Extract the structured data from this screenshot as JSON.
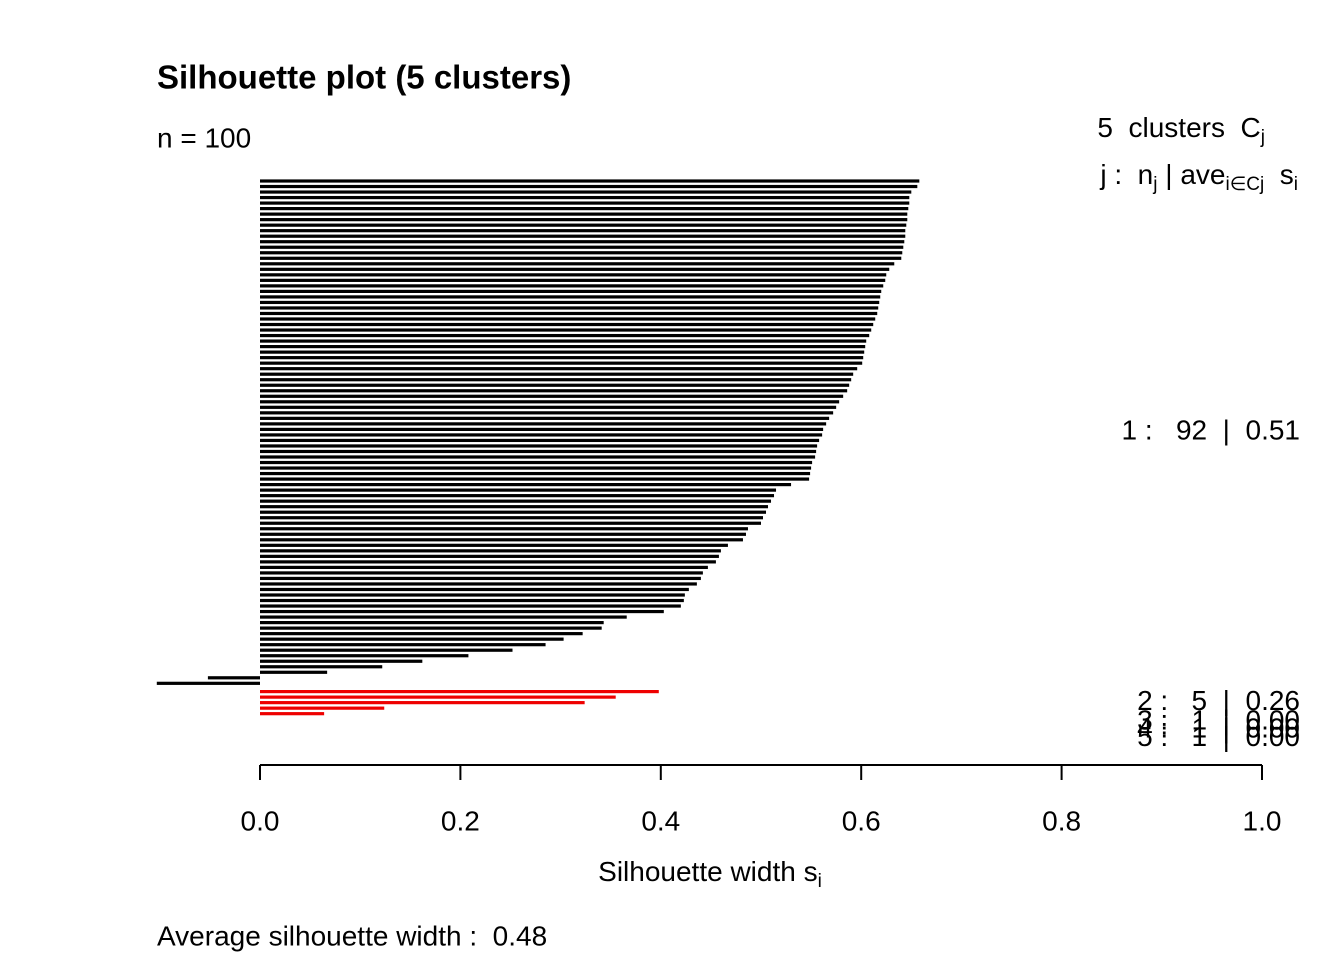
{
  "chart_data": {
    "type": "silhouette",
    "title": "Silhouette plot (5 clusters)",
    "subtitle": "n = 100",
    "legend_header": [
      "5  clusters  C",
      "j"
    ],
    "legend_subheader": [
      "j :  n",
      "j",
      " | ave",
      "i∈Cj",
      "  s",
      "i"
    ],
    "xlabel": [
      "Silhouette width s",
      "i"
    ],
    "footer": "Average silhouette width :  0.48",
    "xlim": [
      0,
      1
    ],
    "xticks": [
      {
        "value": 0,
        "label": "0.0"
      },
      {
        "value": 0.2,
        "label": "0.2"
      },
      {
        "value": 0.4,
        "label": "0.4"
      },
      {
        "value": 0.6,
        "label": "0.6"
      },
      {
        "value": 0.8,
        "label": "0.8"
      },
      {
        "value": 1,
        "label": "1.0"
      }
    ],
    "series": [
      {
        "name": "1",
        "color": "#000000",
        "label": "1 :   92  |  0.51",
        "values": [
          0.658,
          0.656,
          0.65,
          0.648,
          0.648,
          0.647,
          0.646,
          0.646,
          0.645,
          0.644,
          0.644,
          0.643,
          0.642,
          0.641,
          0.64,
          0.633,
          0.628,
          0.625,
          0.624,
          0.622,
          0.62,
          0.619,
          0.618,
          0.617,
          0.616,
          0.614,
          0.612,
          0.61,
          0.608,
          0.605,
          0.604,
          0.603,
          0.602,
          0.601,
          0.596,
          0.592,
          0.59,
          0.588,
          0.586,
          0.582,
          0.578,
          0.575,
          0.572,
          0.568,
          0.565,
          0.562,
          0.561,
          0.558,
          0.556,
          0.555,
          0.554,
          0.551,
          0.55,
          0.549,
          0.548,
          0.53,
          0.515,
          0.513,
          0.51,
          0.507,
          0.505,
          0.502,
          0.5,
          0.487,
          0.485,
          0.482,
          0.467,
          0.46,
          0.458,
          0.455,
          0.447,
          0.442,
          0.44,
          0.436,
          0.428,
          0.424,
          0.423,
          0.42,
          0.403,
          0.366,
          0.343,
          0.341,
          0.322,
          0.303,
          0.285,
          0.252,
          0.208,
          0.162,
          0.122,
          0.067,
          -0.052,
          -0.103
        ]
      },
      {
        "name": "2",
        "color": "#ee0000",
        "label": "2 :   5  |  0.26",
        "values": [
          0.398,
          0.355,
          0.324,
          0.124,
          0.064
        ]
      },
      {
        "name": "3",
        "color": "#00cd00",
        "label": "3 :   1  |  0.00",
        "values": [
          0
        ]
      },
      {
        "name": "4",
        "color": "#0000ee",
        "label": "4 :   1  |  0.00",
        "values": [
          0
        ]
      },
      {
        "name": "5",
        "color": "#00cdcd",
        "label": "5 :   1  |  0.00",
        "values": [
          0
        ]
      }
    ]
  }
}
